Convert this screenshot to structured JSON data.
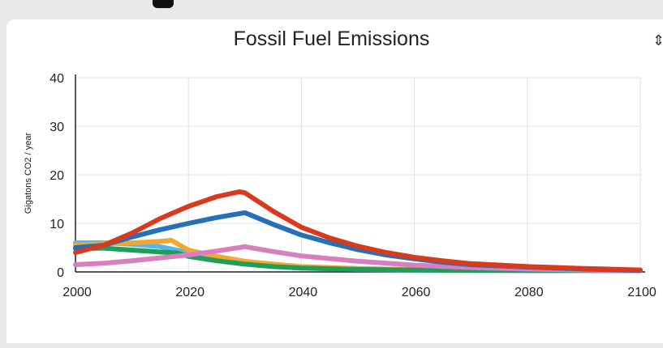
{
  "chart_data": {
    "type": "line",
    "title": "Fossil Fuel Emissions",
    "ylabel": "Gigatons CO2 / year",
    "xlabel": "",
    "xlim": [
      2000,
      2100
    ],
    "ylim": [
      0,
      40
    ],
    "x_ticks": [
      "2000",
      "2020",
      "2040",
      "2060",
      "2080",
      "2100"
    ],
    "y_ticks": [
      "0",
      "10",
      "20",
      "30",
      "40"
    ],
    "grid": true,
    "series": [
      {
        "color": "#d93a1e",
        "points": [
          [
            2000,
            4
          ],
          [
            2005,
            5.5
          ],
          [
            2010,
            8
          ],
          [
            2015,
            11
          ],
          [
            2020,
            13.5
          ],
          [
            2025,
            15.5
          ],
          [
            2029,
            16.5
          ],
          [
            2030,
            16.3
          ],
          [
            2035,
            12.5
          ],
          [
            2040,
            9.2
          ],
          [
            2045,
            7
          ],
          [
            2050,
            5.3
          ],
          [
            2055,
            4
          ],
          [
            2060,
            3
          ],
          [
            2065,
            2.3
          ],
          [
            2070,
            1.7
          ],
          [
            2080,
            1.1
          ],
          [
            2090,
            0.7
          ],
          [
            2100,
            0.4
          ]
        ]
      },
      {
        "color": "#2471b8",
        "points": [
          [
            2000,
            5
          ],
          [
            2005,
            5.5
          ],
          [
            2010,
            7.2
          ],
          [
            2015,
            8.7
          ],
          [
            2020,
            10
          ],
          [
            2025,
            11.2
          ],
          [
            2030,
            12.2
          ],
          [
            2035,
            9.8
          ],
          [
            2040,
            7.6
          ],
          [
            2045,
            6
          ],
          [
            2050,
            4.6
          ],
          [
            2055,
            3.5
          ],
          [
            2060,
            2.7
          ],
          [
            2065,
            2
          ],
          [
            2070,
            1.5
          ],
          [
            2080,
            1
          ],
          [
            2090,
            0.6
          ],
          [
            2100,
            0.3
          ]
        ]
      },
      {
        "color": "#d97fc0",
        "points": [
          [
            2000,
            1.5
          ],
          [
            2005,
            1.8
          ],
          [
            2010,
            2.3
          ],
          [
            2015,
            2.9
          ],
          [
            2020,
            3.5
          ],
          [
            2025,
            4.3
          ],
          [
            2030,
            5.2
          ],
          [
            2035,
            4.2
          ],
          [
            2040,
            3.3
          ],
          [
            2050,
            2.2
          ],
          [
            2060,
            1.4
          ],
          [
            2070,
            0.9
          ],
          [
            2080,
            0.6
          ],
          [
            2090,
            0.4
          ],
          [
            2100,
            0.3
          ]
        ]
      },
      {
        "color": "#f0a830",
        "points": [
          [
            2000,
            5.5
          ],
          [
            2005,
            5.8
          ],
          [
            2010,
            6
          ],
          [
            2015,
            6.3
          ],
          [
            2017,
            6.5
          ],
          [
            2020,
            4.5
          ],
          [
            2025,
            3.2
          ],
          [
            2030,
            2.2
          ],
          [
            2035,
            1.6
          ],
          [
            2040,
            1.1
          ],
          [
            2050,
            0.7
          ],
          [
            2060,
            0.5
          ],
          [
            2070,
            0.4
          ],
          [
            2080,
            0.3
          ],
          [
            2090,
            0.3
          ],
          [
            2100,
            0.3
          ]
        ]
      },
      {
        "color": "#1e9e58",
        "points": [
          [
            2000,
            4.8
          ],
          [
            2005,
            4.9
          ],
          [
            2010,
            4.5
          ],
          [
            2015,
            4.1
          ],
          [
            2018,
            3.9
          ],
          [
            2020,
            3.2
          ],
          [
            2025,
            2.3
          ],
          [
            2030,
            1.6
          ],
          [
            2035,
            1.1
          ],
          [
            2040,
            0.8
          ],
          [
            2050,
            0.5
          ],
          [
            2060,
            0.4
          ],
          [
            2070,
            0.3
          ],
          [
            2080,
            0.3
          ],
          [
            2090,
            0.3
          ],
          [
            2100,
            0.3
          ]
        ]
      },
      {
        "color": "#56b8e8",
        "points": [
          [
            2000,
            6
          ],
          [
            2005,
            6
          ],
          [
            2010,
            5.7
          ],
          [
            2015,
            5.2
          ],
          [
            2020,
            4
          ],
          [
            2025,
            2.8
          ],
          [
            2030,
            1.9
          ],
          [
            2035,
            1.3
          ],
          [
            2040,
            0.9
          ],
          [
            2050,
            0.6
          ],
          [
            2060,
            0.4
          ],
          [
            2070,
            0.35
          ],
          [
            2080,
            0.3
          ],
          [
            2090,
            0.3
          ],
          [
            2100,
            0.3
          ]
        ]
      }
    ]
  }
}
